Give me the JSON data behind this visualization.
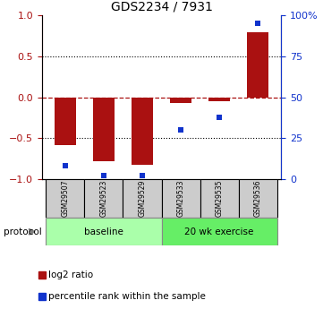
{
  "title": "GDS2234 / 7931",
  "samples": [
    "GSM29507",
    "GSM29523",
    "GSM29529",
    "GSM29533",
    "GSM29535",
    "GSM29536"
  ],
  "log2_ratio": [
    -0.58,
    -0.78,
    -0.82,
    -0.07,
    -0.05,
    0.8
  ],
  "percentile_rank": [
    8,
    2,
    2,
    30,
    38,
    95
  ],
  "bar_color": "#aa1111",
  "dot_color": "#1133cc",
  "left_ylim": [
    -1,
    1
  ],
  "right_ylim": [
    0,
    100
  ],
  "left_yticks": [
    -1,
    -0.5,
    0,
    0.5,
    1
  ],
  "right_yticks": [
    0,
    25,
    50,
    75,
    100
  ],
  "right_yticklabels": [
    "0",
    "25",
    "50",
    "75",
    "100%"
  ],
  "dotted_hlines": [
    0.5,
    -0.5
  ],
  "protocol_groups": [
    {
      "label": "baseline",
      "start": 0,
      "end": 3,
      "color": "#aaffaa"
    },
    {
      "label": "20 wk exercise",
      "start": 3,
      "end": 6,
      "color": "#66ee66"
    }
  ],
  "protocol_label": "protocol",
  "legend_items": [
    {
      "label": "log2 ratio",
      "color": "#aa1111"
    },
    {
      "label": "percentile rank within the sample",
      "color": "#1133cc"
    }
  ],
  "bar_width": 0.55,
  "background_color": "#ffffff",
  "sample_box_color": "#cccccc"
}
